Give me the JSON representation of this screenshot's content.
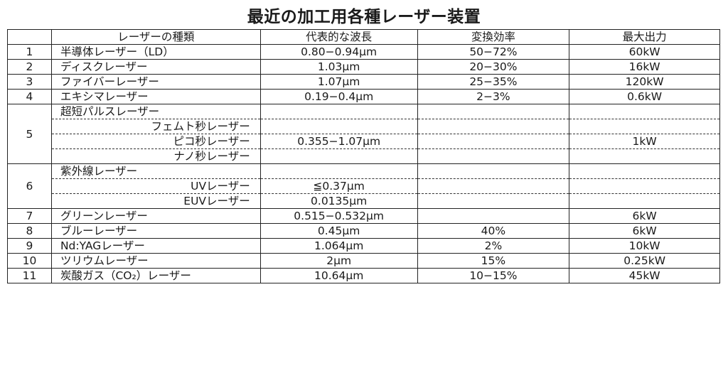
{
  "title": "最近の加工用各種レーザー装置",
  "headers": [
    "",
    "レーザーの種類",
    "代表的な波長",
    "変換効率",
    "最大出力"
  ],
  "rows": [
    {
      "no": "1",
      "type": "半導体レーザー（LD）",
      "wavelength": "0.80−0.94μm",
      "efficiency": "50−72%",
      "output": "60kW"
    },
    {
      "no": "2",
      "type": "ディスクレーザー",
      "wavelength": "1.03μm",
      "efficiency": "20−30%",
      "output": "16kW"
    },
    {
      "no": "3",
      "type": "ファイバーレーザー",
      "wavelength": "1.07μm",
      "efficiency": "25−35%",
      "output": "120kW"
    },
    {
      "no": "4",
      "type": "エキシマレーザー",
      "wavelength": "0.19−0.4μm",
      "efficiency": "2−3%",
      "output": "0.6kW"
    }
  ],
  "group5": {
    "no": "5",
    "type": "超短パルスレーザー",
    "sub": [
      {
        "type": "フェムト秒レーザー",
        "wavelength": "",
        "output": ""
      },
      {
        "type": "ピコ秒レーザー",
        "wavelength": "0.355−1.07μm",
        "output": "1kW"
      },
      {
        "type": "ナノ秒レーザー",
        "wavelength": "",
        "output": ""
      }
    ]
  },
  "group6": {
    "no": "6",
    "type": "紫外線レーザー",
    "sub": [
      {
        "type": "UVレーザー",
        "wavelength": "≦0.37μm"
      },
      {
        "type": "EUVレーザー",
        "wavelength": "0.0135μm"
      }
    ]
  },
  "rows2": [
    {
      "no": "7",
      "type": "グリーンレーザー",
      "wavelength": "0.515−0.532μm",
      "efficiency": "",
      "output": "6kW"
    },
    {
      "no": "8",
      "type": "ブルーレーザー",
      "wavelength": "0.45μm",
      "efficiency": "40%",
      "output": "6kW"
    },
    {
      "no": "9",
      "type": "Nd:YAGレーザー",
      "wavelength": "1.064μm",
      "efficiency": "2%",
      "output": "10kW"
    },
    {
      "no": "10",
      "type": "ツリウムレーザー",
      "wavelength": "2μm",
      "efficiency": "15%",
      "output": "0.25kW"
    },
    {
      "no": "11",
      "type": "炭酸ガス（CO₂）レーザー",
      "wavelength": "10.64μm",
      "efficiency": "10−15%",
      "output": "45kW"
    }
  ]
}
